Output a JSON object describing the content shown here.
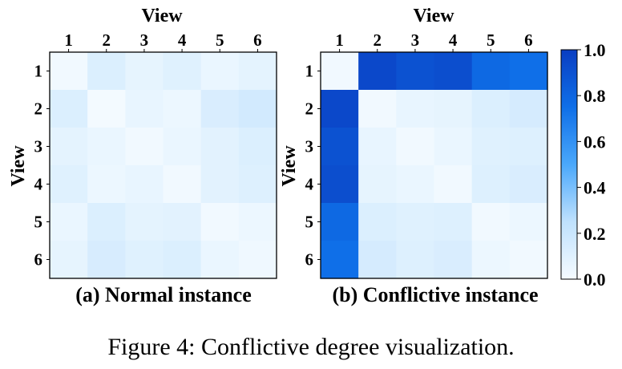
{
  "caption": "Figure 4: Conflictive degree visualization.",
  "colors": {
    "low": "#f5fbff",
    "mid": "#4aa8fb",
    "high": "#0a3ec2",
    "frame": "#000000"
  },
  "chart_data": [
    {
      "type": "heatmap",
      "subtitle": "(a) Normal instance",
      "xlabel": "View",
      "ylabel": "View",
      "x_categories": [
        "1",
        "2",
        "3",
        "4",
        "5",
        "6"
      ],
      "y_categories": [
        "1",
        "2",
        "3",
        "4",
        "5",
        "6"
      ],
      "zlim": [
        0.0,
        1.0
      ],
      "values": [
        [
          0.02,
          0.12,
          0.07,
          0.1,
          0.05,
          0.08
        ],
        [
          0.12,
          0.01,
          0.06,
          0.04,
          0.13,
          0.16
        ],
        [
          0.08,
          0.05,
          0.02,
          0.05,
          0.09,
          0.12
        ],
        [
          0.1,
          0.04,
          0.06,
          0.02,
          0.09,
          0.11
        ],
        [
          0.05,
          0.12,
          0.08,
          0.09,
          0.02,
          0.04
        ],
        [
          0.07,
          0.14,
          0.1,
          0.12,
          0.05,
          0.03
        ]
      ]
    },
    {
      "type": "heatmap",
      "subtitle": "(b) Conflictive instance",
      "xlabel": "View",
      "ylabel": "View",
      "x_categories": [
        "1",
        "2",
        "3",
        "4",
        "5",
        "6"
      ],
      "y_categories": [
        "1",
        "2",
        "3",
        "4",
        "5",
        "6"
      ],
      "zlim": [
        0.0,
        1.0
      ],
      "values": [
        [
          0.02,
          0.95,
          0.9,
          0.92,
          0.78,
          0.75
        ],
        [
          0.95,
          0.02,
          0.06,
          0.07,
          0.12,
          0.15
        ],
        [
          0.9,
          0.06,
          0.02,
          0.05,
          0.1,
          0.11
        ],
        [
          0.92,
          0.07,
          0.05,
          0.02,
          0.11,
          0.13
        ],
        [
          0.78,
          0.12,
          0.1,
          0.11,
          0.02,
          0.04
        ],
        [
          0.75,
          0.15,
          0.11,
          0.13,
          0.04,
          0.02
        ]
      ]
    }
  ],
  "colorbar": {
    "ticks": [
      "0.0",
      "0.2",
      "0.4",
      "0.6",
      "0.8",
      "1.0"
    ],
    "tick_values": [
      0.0,
      0.2,
      0.4,
      0.6,
      0.8,
      1.0
    ]
  }
}
